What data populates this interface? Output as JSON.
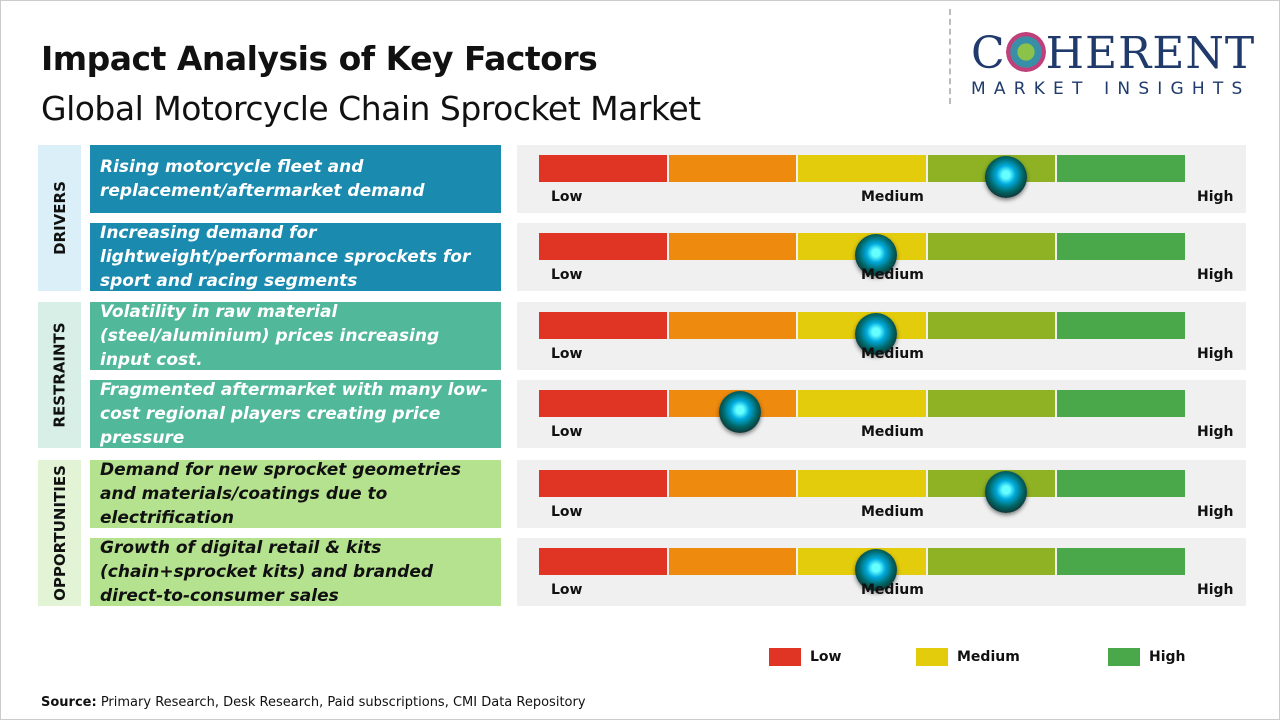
{
  "title": "Impact Analysis of Key Factors",
  "subtitle": "Global Motorcycle Chain Sprocket Market",
  "logo": {
    "name": "COHERENT",
    "tagline": "MARKET INSIGHTS"
  },
  "scale_labels": {
    "low": "Low",
    "medium": "Medium",
    "high": "High"
  },
  "colors": {
    "low": "#e03424",
    "low_mid": "#ee8a0e",
    "medium": "#e3cc0c",
    "mid_high": "#8fb224",
    "high": "#4aa84a"
  },
  "categories": [
    {
      "label": "DRIVERS",
      "factors": [
        {
          "text": "Rising motorcycle fleet and replacement/aftermarket demand",
          "impact": 0.72
        },
        {
          "text": "Increasing demand for lightweight/performance sprockets for sport and racing segments",
          "impact": 0.52
        }
      ]
    },
    {
      "label": "RESTRAINTS",
      "factors": [
        {
          "text": "Volatility in raw material (steel/aluminium) prices increasing input cost.",
          "impact": 0.52
        },
        {
          "text": "Fragmented aftermarket with many low-cost regional players creating price pressure",
          "impact": 0.31
        }
      ]
    },
    {
      "label": "OPPORTUNITIES",
      "factors": [
        {
          "text": "Demand for new sprocket geometries and materials/coatings due to electrification",
          "impact": 0.72
        },
        {
          "text": "Growth of digital retail & kits (chain+sprocket kits) and branded direct-to-consumer sales",
          "impact": 0.52
        }
      ]
    }
  ],
  "legend": [
    {
      "label": "Low",
      "color": "#e03424"
    },
    {
      "label": "Medium",
      "color": "#e3cc0c"
    },
    {
      "label": "High",
      "color": "#4aa84a"
    }
  ],
  "source": {
    "label": "Source:",
    "text": " Primary Research, Desk Research, Paid subscriptions, CMI Data Repository"
  }
}
